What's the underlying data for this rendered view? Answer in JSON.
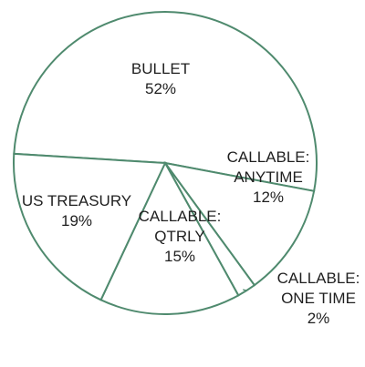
{
  "chart_data": {
    "type": "pie",
    "colors": {
      "outline": "#4f8a6e",
      "fill": "#ffffff",
      "text": "#1f1f1f"
    },
    "slices": [
      {
        "label_lines": [
          "BULLET"
        ],
        "name": "BULLET",
        "value": 52,
        "value_label": "52%"
      },
      {
        "label_lines": [
          "CALLABLE:",
          "ANYTIME"
        ],
        "name": "CALLABLE: ANYTIME",
        "value": 12,
        "value_label": "12%"
      },
      {
        "label_lines": [
          "CALLABLE:",
          "ONE TIME"
        ],
        "name": "CALLABLE: ONE TIME",
        "value": 2,
        "value_label": "2%"
      },
      {
        "label_lines": [
          "CALLABLE:",
          "QTRLY"
        ],
        "name": "CALLABLE: QTRLY",
        "value": 15,
        "value_label": "15%"
      },
      {
        "label_lines": [
          "US TREASURY"
        ],
        "name": "US TREASURY",
        "value": 19,
        "value_label": "19%"
      }
    ]
  }
}
